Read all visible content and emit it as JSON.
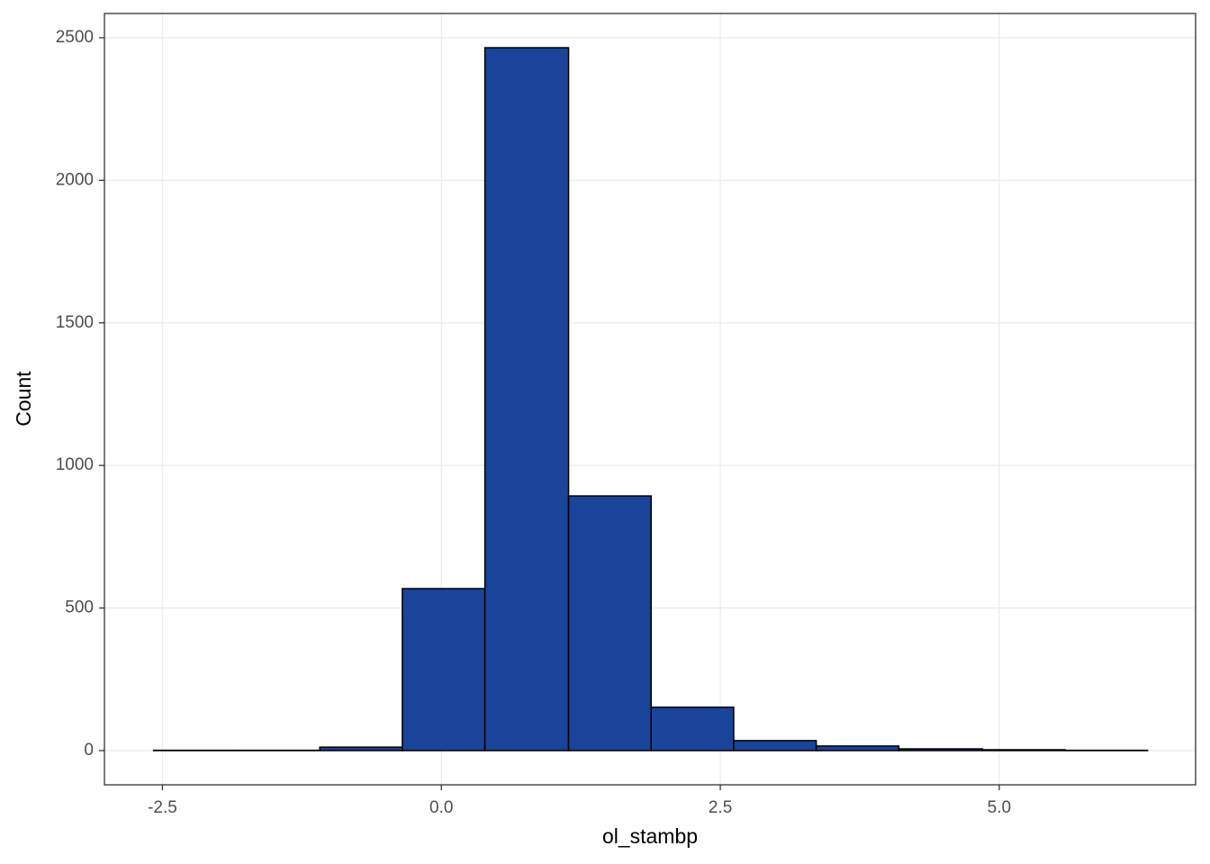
{
  "chart_data": {
    "type": "histogram",
    "x_label": "ol_stambp",
    "y_label": "Count",
    "bins": [
      -2.58,
      -1.83,
      -1.09,
      -0.35,
      0.39,
      1.14,
      1.88,
      2.62,
      3.36,
      4.1,
      4.85,
      5.59,
      6.33
    ],
    "values": [
      1,
      1,
      12,
      568,
      2465,
      893,
      152,
      35,
      16,
      6,
      3,
      1
    ],
    "color": "#1a4499",
    "xlim": [
      -3.02,
      6.76
    ],
    "xticks": [
      {
        "value": -2.5,
        "label": "-2.5"
      },
      {
        "value": 0,
        "label": "0.0"
      },
      2.5,
      {
        "value": 5,
        "label": "5.0"
      }
    ],
    "ylim": [
      -120,
      2585
    ],
    "yticks": [
      0,
      500,
      1000,
      1500,
      2000,
      2500
    ],
    "grid": true
  }
}
